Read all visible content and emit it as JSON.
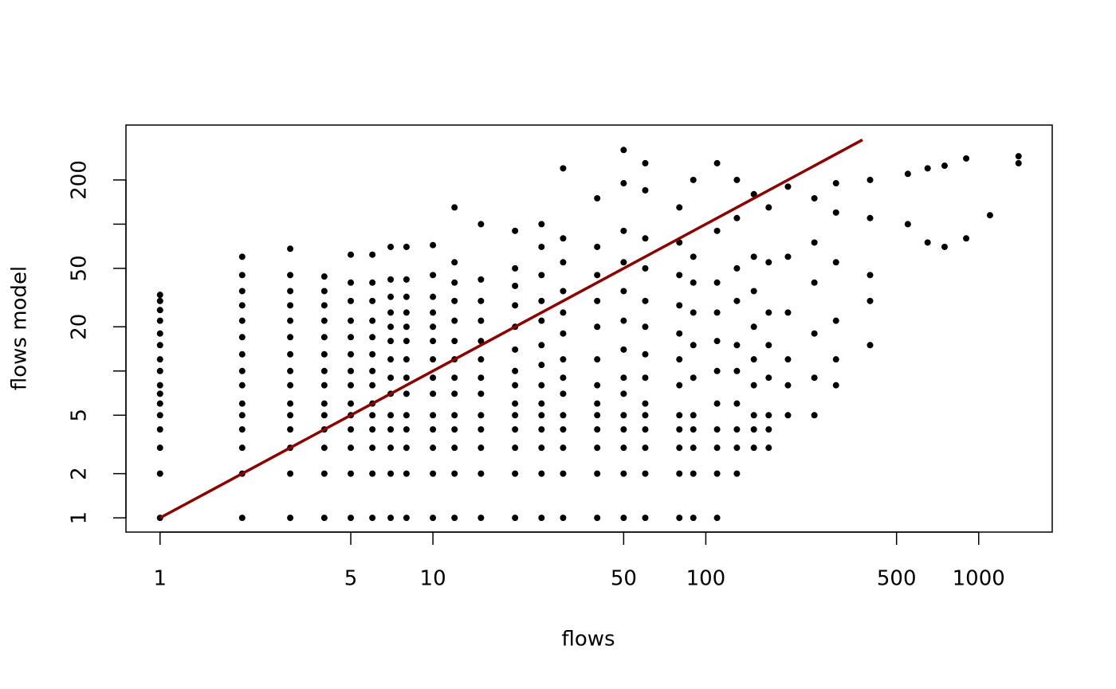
{
  "chart_data": {
    "type": "scatter",
    "xlabel": "flows",
    "ylabel": "flows model",
    "xscale": "log",
    "yscale": "log",
    "xlim": [
      0.75,
      1860
    ],
    "ylim": [
      0.8,
      473
    ],
    "xticks": [
      1,
      5,
      10,
      50,
      100,
      500,
      1000
    ],
    "yticks": [
      1,
      2,
      5,
      {
        "value": 10,
        "label": null
      },
      20,
      50,
      {
        "value": 100,
        "label": null
      },
      200
    ],
    "x": [
      1,
      1,
      1,
      1,
      1,
      1,
      1,
      1,
      1,
      1,
      1,
      1,
      1,
      1,
      1,
      1,
      2,
      2,
      2,
      2,
      2,
      2,
      2,
      2,
      2,
      2,
      2,
      2,
      2,
      2,
      2,
      3,
      3,
      3,
      3,
      3,
      3,
      3,
      3,
      3,
      3,
      3,
      3,
      3,
      3,
      3,
      4,
      4,
      4,
      4,
      4,
      4,
      4,
      4,
      4,
      4,
      4,
      4,
      4,
      4,
      5,
      5,
      5,
      5,
      5,
      5,
      5,
      5,
      5,
      5,
      5,
      5,
      5,
      5,
      6,
      6,
      6,
      6,
      6,
      6,
      6,
      6,
      6,
      6,
      6,
      6,
      6,
      6,
      7,
      7,
      7,
      7,
      7,
      7,
      7,
      7,
      7,
      7,
      7,
      7,
      7,
      7,
      8,
      8,
      8,
      8,
      8,
      8,
      8,
      8,
      8,
      8,
      8,
      8,
      8,
      8,
      10,
      10,
      10,
      10,
      10,
      10,
      10,
      10,
      10,
      10,
      10,
      10,
      10,
      10,
      12,
      12,
      12,
      12,
      12,
      12,
      12,
      12,
      12,
      12,
      12,
      12,
      12,
      12,
      15,
      15,
      15,
      15,
      15,
      15,
      15,
      15,
      15,
      15,
      15,
      15,
      15,
      20,
      20,
      20,
      20,
      20,
      20,
      20,
      20,
      20,
      20,
      20,
      20,
      20,
      20,
      25,
      25,
      25,
      25,
      25,
      25,
      25,
      25,
      25,
      25,
      25,
      25,
      25,
      25,
      30,
      30,
      30,
      30,
      30,
      30,
      30,
      30,
      30,
      30,
      30,
      30,
      30,
      30,
      40,
      40,
      40,
      40,
      40,
      40,
      40,
      40,
      40,
      40,
      40,
      40,
      40,
      50,
      50,
      50,
      50,
      50,
      50,
      50,
      50,
      50,
      50,
      50,
      50,
      50,
      50,
      60,
      60,
      60,
      60,
      60,
      60,
      60,
      60,
      60,
      60,
      60,
      60,
      60,
      60,
      80,
      80,
      80,
      80,
      80,
      80,
      80,
      80,
      80,
      80,
      80,
      80,
      90,
      90,
      90,
      90,
      90,
      90,
      90,
      90,
      90,
      90,
      90,
      110,
      110,
      110,
      110,
      110,
      110,
      110,
      110,
      110,
      110,
      110,
      130,
      130,
      130,
      130,
      130,
      130,
      130,
      130,
      130,
      130,
      150,
      150,
      150,
      150,
      150,
      150,
      150,
      150,
      150,
      170,
      170,
      170,
      170,
      170,
      170,
      170,
      170,
      200,
      200,
      200,
      200,
      200,
      200,
      250,
      250,
      250,
      250,
      250,
      250,
      300,
      300,
      300,
      300,
      300,
      300,
      400,
      400,
      400,
      400,
      400,
      550,
      550,
      650,
      650,
      750,
      750,
      900,
      900,
      1100,
      1400,
      1400
    ],
    "series": [
      {
        "color": "#000000",
        "values": [
          1,
          2,
          3,
          4,
          5,
          6,
          7,
          8,
          10,
          12,
          15,
          18,
          22,
          26,
          30,
          33,
          1,
          2,
          3,
          4,
          5,
          6,
          8,
          10,
          13,
          17,
          22,
          28,
          35,
          45,
          60,
          1,
          2,
          3,
          4,
          5,
          6,
          8,
          10,
          13,
          17,
          22,
          28,
          35,
          45,
          68,
          1,
          2,
          3,
          4,
          5,
          6,
          8,
          10,
          13,
          17,
          22,
          28,
          35,
          44,
          1,
          2,
          3,
          4,
          5,
          6,
          8,
          10,
          13,
          17,
          22,
          30,
          40,
          62,
          1,
          2,
          3,
          4,
          5,
          6,
          8,
          10,
          13,
          17,
          22,
          30,
          40,
          62,
          1,
          2,
          3,
          4,
          5,
          7,
          9,
          12,
          16,
          20,
          25,
          32,
          42,
          70,
          1,
          2,
          3,
          4,
          5,
          7,
          9,
          12,
          16,
          20,
          25,
          32,
          42,
          70,
          1,
          2,
          3,
          4,
          5,
          7,
          9,
          12,
          16,
          20,
          25,
          32,
          45,
          72,
          1,
          2,
          3,
          4,
          5,
          7,
          9,
          12,
          16,
          22,
          30,
          40,
          55,
          130,
          1,
          2,
          3,
          4,
          5,
          7,
          9,
          12,
          16,
          22,
          30,
          42,
          100,
          1,
          2,
          3,
          4,
          5,
          6,
          8,
          10,
          14,
          20,
          28,
          38,
          50,
          90,
          1,
          2,
          3,
          4,
          5,
          6,
          8,
          11,
          15,
          22,
          30,
          45,
          70,
          100,
          1,
          2,
          3,
          4,
          5,
          7,
          9,
          12,
          18,
          25,
          35,
          55,
          80,
          240,
          1,
          2,
          3,
          4,
          5,
          6,
          8,
          12,
          20,
          30,
          45,
          70,
          150,
          1,
          2,
          3,
          4,
          5,
          7,
          9,
          14,
          22,
          35,
          55,
          90,
          190,
          320,
          1,
          2,
          3,
          4,
          5,
          6,
          9,
          13,
          20,
          30,
          50,
          80,
          170,
          260,
          1,
          2,
          3,
          4,
          5,
          8,
          12,
          18,
          28,
          45,
          75,
          130,
          1,
          2,
          3,
          4,
          5,
          9,
          15,
          25,
          40,
          60,
          200,
          1,
          2,
          3,
          4,
          6,
          10,
          16,
          25,
          40,
          90,
          260,
          2,
          3,
          4,
          6,
          10,
          15,
          30,
          50,
          110,
          200,
          3,
          4,
          5,
          8,
          12,
          20,
          35,
          60,
          160,
          3,
          4,
          5,
          9,
          15,
          25,
          55,
          130,
          5,
          8,
          12,
          25,
          60,
          180,
          5,
          9,
          18,
          40,
          75,
          150,
          8,
          12,
          22,
          55,
          120,
          190,
          15,
          30,
          45,
          110,
          200,
          100,
          220,
          240,
          75,
          70,
          250,
          80,
          280,
          115,
          260,
          290
        ]
      }
    ],
    "line": {
      "x": [
        1,
        375
      ],
      "values": [
        1,
        375
      ],
      "color": "#8b0000"
    }
  }
}
